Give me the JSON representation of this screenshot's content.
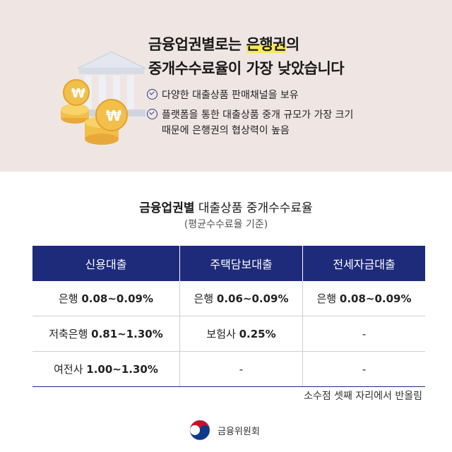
{
  "headline": {
    "line1_pre": "금융업권별로는 ",
    "line1_hl": "은행권",
    "line1_post": "의",
    "line2": "중개수수료율이 가장 낮았습니다"
  },
  "bullets": [
    {
      "lines": [
        "다양한 대출상품 판매채널을 보유"
      ]
    },
    {
      "lines": [
        "플랫폼을 통한 대출상품 중개 규모가 가장 크기",
        "때문에 은행권의 협상력이 높음"
      ]
    }
  ],
  "table": {
    "title_bold": "금융업권별",
    "title_rest": " 대출상품 중개수수료율",
    "subtitle": "(평균수수료율 기준)",
    "headers": [
      "신용대출",
      "주택담보대출",
      "전세자금대출"
    ],
    "rows": [
      [
        {
          "label": "은행 ",
          "value": "0.08~0.09%"
        },
        {
          "label": "은행 ",
          "value": "0.06~0.09%"
        },
        {
          "label": "은행 ",
          "value": "0.08~0.09%"
        }
      ],
      [
        {
          "label": "저축은행 ",
          "value": "0.81~1.30%"
        },
        {
          "label": "보험사 ",
          "value": "0.25%"
        },
        {
          "label": "",
          "value": "-"
        }
      ],
      [
        {
          "label": "여전사 ",
          "value": "1.00~1.30%"
        },
        {
          "label": "",
          "value": "-"
        },
        {
          "label": "",
          "value": "-"
        }
      ]
    ]
  },
  "footnote": "소수점 셋째 자리에서 반올림",
  "logo": {
    "text": "금융위원회",
    "icon": "taegeuk-logo-icon"
  },
  "colors": {
    "header_bg": "#1e2a7a",
    "top_bg": "#efe6e3",
    "highlight": "#f7e85a"
  },
  "illustration": {
    "icon": "bank-with-won-coins-icon"
  }
}
